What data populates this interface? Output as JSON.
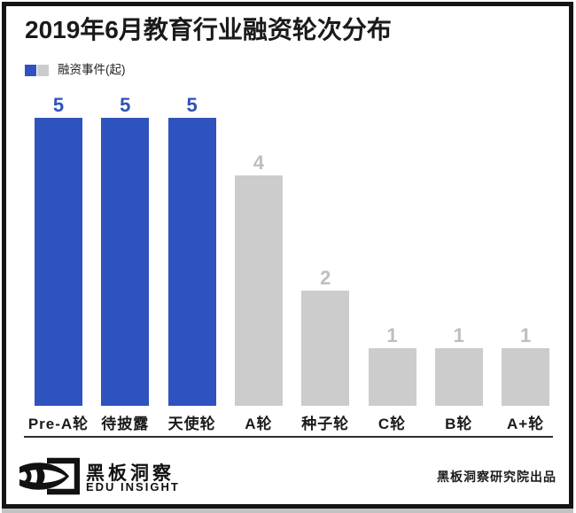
{
  "frame": {
    "border_color": "#141414"
  },
  "header": {
    "title": "2019年6月教育行业融资轮次分布",
    "legend": {
      "label": "融资事件(起)",
      "swatch_blue": "#2E52BE",
      "swatch_gray": "#CCCCCC"
    }
  },
  "chart_data": {
    "type": "bar",
    "title": "2019年6月教育行业融资轮次分布",
    "series_name": "融资事件(起)",
    "categories": [
      "Pre-A轮",
      "待披露",
      "天使轮",
      "A轮",
      "种子轮",
      "C轮",
      "B轮",
      "A+轮"
    ],
    "values": [
      5,
      5,
      5,
      4,
      2,
      1,
      1,
      1
    ],
    "bar_colors": [
      "#2E52BE",
      "#2E52BE",
      "#2E52BE",
      "#CCCCCC",
      "#CCCCCC",
      "#CCCCCC",
      "#CCCCCC",
      "#CCCCCC"
    ],
    "label_colors": [
      "#2E52BE",
      "#2E52BE",
      "#2E52BE",
      "#BEBEBE",
      "#BEBEBE",
      "#BEBEBE",
      "#BEBEBE",
      "#BEBEBE"
    ],
    "ylim": [
      0,
      5
    ],
    "grid": false,
    "value_labels": true,
    "legend_position": "top-left"
  },
  "footer": {
    "brand_name": "黑板洞察",
    "brand_sub": "EDU INSIGHT",
    "credit": "黑板洞察研究院出品"
  }
}
